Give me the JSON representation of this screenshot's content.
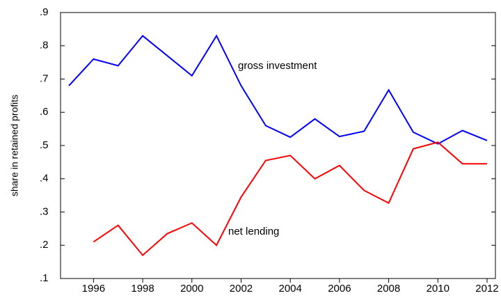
{
  "chart_data": {
    "type": "line",
    "ylabel": "share in retained profits",
    "x": [
      1995,
      1996,
      1997,
      1998,
      1999,
      2000,
      2001,
      2002,
      2003,
      2004,
      2005,
      2006,
      2007,
      2008,
      2009,
      2010,
      2011,
      2012
    ],
    "series": [
      {
        "name": "gross investment",
        "color": "#0000ff",
        "values": [
          0.68,
          0.76,
          0.74,
          0.83,
          0.77,
          0.71,
          0.83,
          0.68,
          0.56,
          0.525,
          0.58,
          0.527,
          0.543,
          0.667,
          0.54,
          0.505,
          0.545,
          0.515
        ]
      },
      {
        "name": "net lending",
        "color": "#ff0000",
        "values": [
          null,
          0.21,
          0.26,
          0.17,
          0.235,
          0.267,
          0.2,
          0.345,
          0.455,
          0.47,
          0.4,
          0.44,
          0.365,
          0.327,
          0.49,
          0.51,
          0.445,
          0.445
        ]
      }
    ],
    "xlim": [
      1994.66,
      2012.34
    ],
    "xticks": [
      1996,
      1998,
      2000,
      2002,
      2004,
      2006,
      2008,
      2010,
      2012
    ],
    "ylim": [
      0.1,
      0.9
    ],
    "yticks": [
      {
        "value": 0.1,
        "label": ".1"
      },
      {
        "value": 0.2,
        "label": ".2"
      },
      {
        "value": 0.3,
        "label": ".3"
      },
      {
        "value": 0.4,
        "label": ".4"
      },
      {
        "value": 0.5,
        "label": ".5"
      },
      {
        "value": 0.6,
        "label": ".6"
      },
      {
        "value": 0.7,
        "label": ".7"
      },
      {
        "value": 0.8,
        "label": ".8"
      },
      {
        "value": 0.9,
        "label": ".9"
      }
    ],
    "grid": false,
    "legend": false
  }
}
